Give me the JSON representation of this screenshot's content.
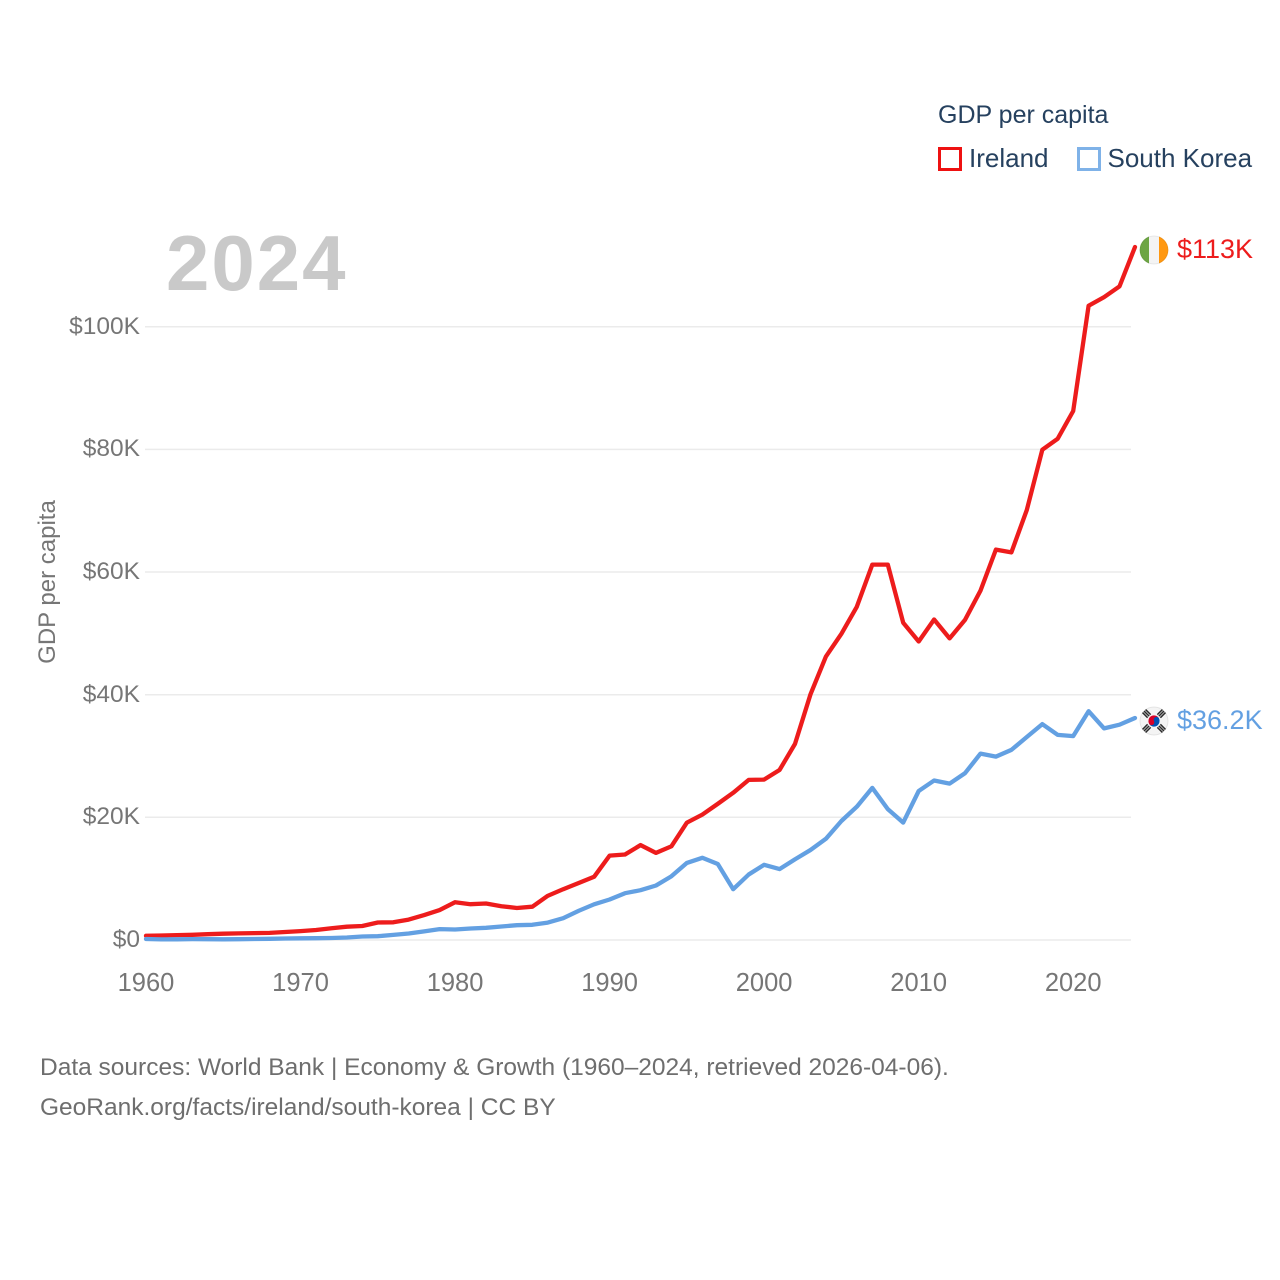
{
  "watermark": "2024",
  "legend": {
    "title": "GDP per capita",
    "items": [
      {
        "label": "Ireland",
        "swatch_color": "#ee1111"
      },
      {
        "label": "South Korea",
        "swatch_color": "#7fb2e8"
      }
    ]
  },
  "y_axis": {
    "title": "GDP per capita",
    "ticks": [
      "$0",
      "$20K",
      "$40K",
      "$60K",
      "$80K",
      "$100K"
    ]
  },
  "x_axis": {
    "ticks": [
      "1960",
      "1970",
      "1980",
      "1990",
      "2000",
      "2010",
      "2020"
    ]
  },
  "end_labels": [
    {
      "series": "Ireland",
      "value": "$113K",
      "flag": "ireland-flag",
      "color": "#ed1c1c"
    },
    {
      "series": "South Korea",
      "value": "$36.2K",
      "flag": "south-korea-flag",
      "color": "#63a0e2"
    }
  ],
  "footer": {
    "line1": "Data sources: World Bank | Economy & Growth (1960–2024, retrieved 2026-04-06).",
    "line2": "GeoRank.org/facts/ireland/south-korea | CC BY"
  },
  "chart_data": {
    "type": "line",
    "title": "GDP per capita",
    "xlabel": "",
    "ylabel": "GDP per capita",
    "xlim": [
      1960,
      2024
    ],
    "ylim": [
      0,
      115000
    ],
    "yticks": [
      0,
      20000,
      40000,
      60000,
      80000,
      100000
    ],
    "xticks": [
      1960,
      1970,
      1980,
      1990,
      2000,
      2010,
      2020
    ],
    "grid": true,
    "legend_position": "top-right",
    "x": [
      1960,
      1961,
      1962,
      1963,
      1964,
      1965,
      1966,
      1967,
      1968,
      1969,
      1970,
      1971,
      1972,
      1973,
      1974,
      1975,
      1976,
      1977,
      1978,
      1979,
      1980,
      1981,
      1982,
      1983,
      1984,
      1985,
      1986,
      1987,
      1988,
      1989,
      1990,
      1991,
      1992,
      1993,
      1994,
      1995,
      1996,
      1997,
      1998,
      1999,
      2000,
      2001,
      2002,
      2003,
      2004,
      2005,
      2006,
      2007,
      2008,
      2009,
      2010,
      2011,
      2012,
      2013,
      2014,
      2015,
      2016,
      2017,
      2018,
      2019,
      2020,
      2021,
      2022,
      2023,
      2024
    ],
    "series": [
      {
        "name": "Ireland",
        "color": "#ed1c1c",
        "end_label": "$113K",
        "values": [
          685,
          740,
          795,
          846,
          950,
          1023,
          1068,
          1127,
          1162,
          1307,
          1446,
          1623,
          1903,
          2169,
          2286,
          2847,
          2878,
          3328,
          4067,
          4871,
          6160,
          5835,
          5953,
          5513,
          5216,
          5427,
          7206,
          8285,
          9300,
          10300,
          13755,
          13943,
          15479,
          14200,
          15274,
          19145,
          20443,
          22212,
          23999,
          26100,
          26154,
          27740,
          31971,
          40054,
          46207,
          49933,
          54332,
          61204,
          61217,
          51736,
          48663,
          52257,
          49177,
          52193,
          56966,
          63648,
          63197,
          70120,
          79925,
          81743,
          86251,
          103429,
          104826,
          106576,
          113000
        ]
      },
      {
        "name": "South Korea",
        "color": "#63a0e2",
        "end_label": "$36.2K",
        "values": [
          158,
          94,
          106,
          146,
          124,
          109,
          133,
          161,
          198,
          243,
          279,
          301,
          324,
          406,
          563,
          617,
          834,
          1056,
          1406,
          1784,
          1715,
          1883,
          1992,
          2198,
          2413,
          2482,
          2835,
          3555,
          4754,
          5817,
          6610,
          7637,
          8127,
          8885,
          10385,
          12565,
          13403,
          12398,
          8282,
          10672,
          12257,
          11561,
          13165,
          14673,
          16496,
          19403,
          21743,
          24800,
          21350,
          19144,
          24300,
          26000,
          25500,
          27200,
          30400,
          29900,
          31000,
          33100,
          35200,
          33450,
          33250,
          37300,
          34500,
          35100,
          36200
        ]
      }
    ]
  }
}
